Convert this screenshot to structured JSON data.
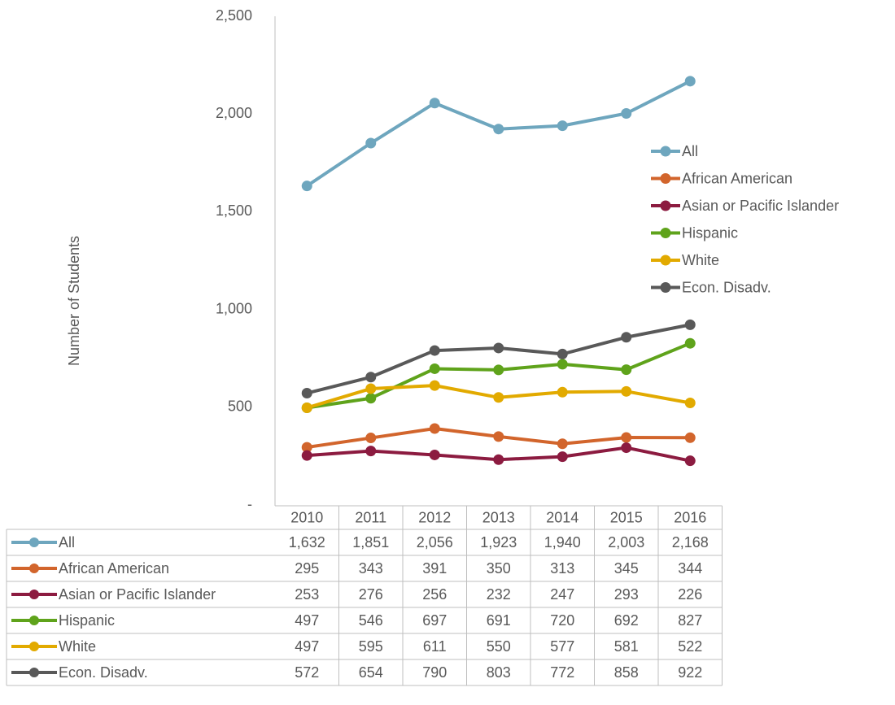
{
  "chart_data": {
    "type": "line",
    "y_axis_label": "Number of Students",
    "categories": [
      "2010",
      "2011",
      "2012",
      "2013",
      "2014",
      "2015",
      "2016"
    ],
    "series": [
      {
        "name": "All",
        "color": "#6ea6be",
        "values": [
          1632,
          1851,
          2056,
          1923,
          1940,
          2003,
          2168
        ],
        "value_labels": [
          "1,632",
          "1,851",
          "2,056",
          "1,923",
          "1,940",
          "2,003",
          "2,168"
        ]
      },
      {
        "name": "African American",
        "color": "#d2652c",
        "values": [
          295,
          343,
          391,
          350,
          313,
          345,
          344
        ]
      },
      {
        "name": "Asian or Pacific Islander",
        "color": "#8c1b40",
        "values": [
          253,
          276,
          256,
          232,
          247,
          293,
          226
        ]
      },
      {
        "name": "Hispanic",
        "color": "#5fa31b",
        "values": [
          497,
          546,
          697,
          691,
          720,
          692,
          827
        ]
      },
      {
        "name": "White",
        "color": "#e2aa00",
        "values": [
          497,
          595,
          611,
          550,
          577,
          581,
          522
        ]
      },
      {
        "name": "Econ. Disadv.",
        "color": "#595959",
        "values": [
          572,
          654,
          790,
          803,
          772,
          858,
          922
        ]
      }
    ],
    "ylim": [
      0,
      2500
    ],
    "yticks": [
      {
        "value": 0,
        "label": "-"
      },
      500,
      {
        "value": 1000,
        "label": "1,000"
      },
      {
        "value": 1500,
        "label": "1,500"
      },
      {
        "value": 2000,
        "label": "2,000"
      },
      {
        "value": 2500,
        "label": "2,500"
      }
    ],
    "legend": "right"
  }
}
